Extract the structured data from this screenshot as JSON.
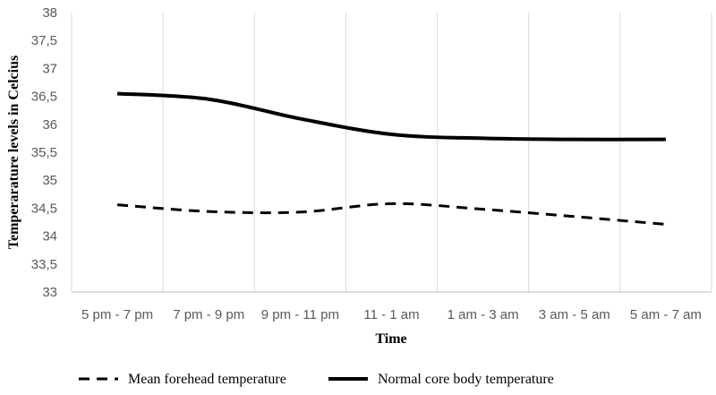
{
  "chart_data": {
    "type": "line",
    "title": "",
    "xlabel": "Time",
    "ylabel": "Temperarature levels in Celcius",
    "categories": [
      "5 pm - 7 pm",
      "7 pm - 9 pm",
      "9 pm - 11 pm",
      "11 - 1 am",
      "1 am - 3 am",
      "3 am - 5 am",
      "5 am - 7 am"
    ],
    "ylim": [
      33,
      38
    ],
    "yticks": [
      "33",
      "33,5",
      "34",
      "34,5",
      "35",
      "35,5",
      "36",
      "36,5",
      "37",
      "37,5",
      "38"
    ],
    "grid": "vertical",
    "legend_position": "bottom",
    "smooth": true,
    "series": [
      {
        "name": "Mean forehead temperature",
        "values": [
          34.56,
          34.44,
          34.43,
          34.58,
          34.48,
          34.35,
          34.21
        ],
        "color": "#000000",
        "style": "dashed"
      },
      {
        "name": "Normal core body temperature",
        "values": [
          36.55,
          36.45,
          36.1,
          35.82,
          35.75,
          35.73,
          35.73
        ],
        "color": "#000000",
        "style": "solid"
      }
    ]
  }
}
